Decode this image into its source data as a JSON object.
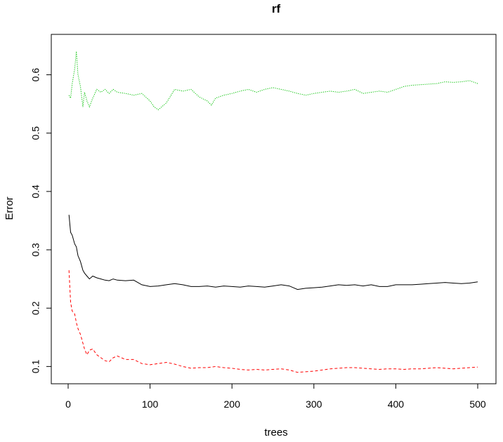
{
  "chart_data": {
    "type": "line",
    "title": "rf",
    "xlabel": "trees",
    "ylabel": "Error",
    "xlim": [
      0,
      500
    ],
    "ylim": [
      0.08,
      0.65
    ],
    "xticks": [
      0,
      100,
      200,
      300,
      400,
      500
    ],
    "yticks": [
      0.1,
      0.2,
      0.3,
      0.4,
      0.5,
      0.6
    ],
    "grid": false,
    "legend": "none",
    "series": [
      {
        "color": "#000000",
        "dash": "solid",
        "points": [
          [
            1,
            0.36
          ],
          [
            3,
            0.33
          ],
          [
            5,
            0.325
          ],
          [
            8,
            0.31
          ],
          [
            10,
            0.305
          ],
          [
            12,
            0.29
          ],
          [
            15,
            0.28
          ],
          [
            18,
            0.265
          ],
          [
            20,
            0.26
          ],
          [
            23,
            0.255
          ],
          [
            26,
            0.25
          ],
          [
            30,
            0.255
          ],
          [
            35,
            0.252
          ],
          [
            40,
            0.25
          ],
          [
            45,
            0.248
          ],
          [
            50,
            0.247
          ],
          [
            55,
            0.25
          ],
          [
            60,
            0.248
          ],
          [
            70,
            0.247
          ],
          [
            80,
            0.248
          ],
          [
            90,
            0.24
          ],
          [
            100,
            0.237
          ],
          [
            110,
            0.238
          ],
          [
            120,
            0.24
          ],
          [
            130,
            0.242
          ],
          [
            140,
            0.24
          ],
          [
            150,
            0.237
          ],
          [
            160,
            0.237
          ],
          [
            170,
            0.238
          ],
          [
            180,
            0.236
          ],
          [
            190,
            0.238
          ],
          [
            200,
            0.237
          ],
          [
            210,
            0.236
          ],
          [
            220,
            0.238
          ],
          [
            230,
            0.237
          ],
          [
            240,
            0.236
          ],
          [
            250,
            0.238
          ],
          [
            260,
            0.24
          ],
          [
            270,
            0.238
          ],
          [
            280,
            0.232
          ],
          [
            290,
            0.234
          ],
          [
            300,
            0.235
          ],
          [
            310,
            0.236
          ],
          [
            320,
            0.238
          ],
          [
            330,
            0.24
          ],
          [
            340,
            0.239
          ],
          [
            350,
            0.24
          ],
          [
            360,
            0.238
          ],
          [
            370,
            0.24
          ],
          [
            380,
            0.237
          ],
          [
            390,
            0.237
          ],
          [
            400,
            0.24
          ],
          [
            410,
            0.24
          ],
          [
            420,
            0.24
          ],
          [
            430,
            0.241
          ],
          [
            440,
            0.242
          ],
          [
            450,
            0.243
          ],
          [
            460,
            0.244
          ],
          [
            470,
            0.243
          ],
          [
            480,
            0.242
          ],
          [
            490,
            0.243
          ],
          [
            500,
            0.245
          ]
        ]
      },
      {
        "color": "#ff0000",
        "dash": "dashed",
        "points": [
          [
            1,
            0.265
          ],
          [
            3,
            0.21
          ],
          [
            5,
            0.195
          ],
          [
            8,
            0.19
          ],
          [
            10,
            0.175
          ],
          [
            12,
            0.165
          ],
          [
            15,
            0.155
          ],
          [
            18,
            0.14
          ],
          [
            20,
            0.13
          ],
          [
            23,
            0.12
          ],
          [
            26,
            0.128
          ],
          [
            30,
            0.13
          ],
          [
            35,
            0.12
          ],
          [
            40,
            0.115
          ],
          [
            45,
            0.11
          ],
          [
            50,
            0.108
          ],
          [
            55,
            0.115
          ],
          [
            60,
            0.118
          ],
          [
            70,
            0.112
          ],
          [
            80,
            0.112
          ],
          [
            90,
            0.105
          ],
          [
            100,
            0.103
          ],
          [
            110,
            0.105
          ],
          [
            120,
            0.107
          ],
          [
            130,
            0.104
          ],
          [
            140,
            0.1
          ],
          [
            150,
            0.097
          ],
          [
            160,
            0.098
          ],
          [
            170,
            0.098
          ],
          [
            180,
            0.1
          ],
          [
            190,
            0.098
          ],
          [
            200,
            0.097
          ],
          [
            210,
            0.095
          ],
          [
            220,
            0.094
          ],
          [
            230,
            0.095
          ],
          [
            240,
            0.094
          ],
          [
            250,
            0.095
          ],
          [
            260,
            0.096
          ],
          [
            270,
            0.094
          ],
          [
            280,
            0.09
          ],
          [
            290,
            0.091
          ],
          [
            300,
            0.092
          ],
          [
            310,
            0.094
          ],
          [
            320,
            0.096
          ],
          [
            330,
            0.097
          ],
          [
            340,
            0.098
          ],
          [
            350,
            0.098
          ],
          [
            360,
            0.097
          ],
          [
            370,
            0.096
          ],
          [
            380,
            0.095
          ],
          [
            390,
            0.096
          ],
          [
            400,
            0.096
          ],
          [
            410,
            0.095
          ],
          [
            420,
            0.096
          ],
          [
            430,
            0.096
          ],
          [
            440,
            0.097
          ],
          [
            450,
            0.098
          ],
          [
            460,
            0.097
          ],
          [
            470,
            0.096
          ],
          [
            480,
            0.097
          ],
          [
            490,
            0.098
          ],
          [
            500,
            0.099
          ]
        ]
      },
      {
        "color": "#00c000",
        "dash": "dotted",
        "points": [
          [
            1,
            0.565
          ],
          [
            3,
            0.56
          ],
          [
            5,
            0.585
          ],
          [
            8,
            0.61
          ],
          [
            10,
            0.64
          ],
          [
            12,
            0.6
          ],
          [
            15,
            0.58
          ],
          [
            18,
            0.545
          ],
          [
            20,
            0.57
          ],
          [
            23,
            0.555
          ],
          [
            26,
            0.545
          ],
          [
            30,
            0.56
          ],
          [
            35,
            0.575
          ],
          [
            40,
            0.57
          ],
          [
            45,
            0.575
          ],
          [
            50,
            0.568
          ],
          [
            55,
            0.575
          ],
          [
            60,
            0.57
          ],
          [
            70,
            0.568
          ],
          [
            80,
            0.565
          ],
          [
            90,
            0.568
          ],
          [
            100,
            0.555
          ],
          [
            105,
            0.545
          ],
          [
            110,
            0.54
          ],
          [
            120,
            0.552
          ],
          [
            130,
            0.575
          ],
          [
            140,
            0.572
          ],
          [
            150,
            0.575
          ],
          [
            160,
            0.562
          ],
          [
            170,
            0.555
          ],
          [
            175,
            0.548
          ],
          [
            180,
            0.56
          ],
          [
            190,
            0.565
          ],
          [
            200,
            0.568
          ],
          [
            210,
            0.572
          ],
          [
            220,
            0.575
          ],
          [
            230,
            0.57
          ],
          [
            240,
            0.575
          ],
          [
            250,
            0.578
          ],
          [
            260,
            0.575
          ],
          [
            270,
            0.572
          ],
          [
            280,
            0.568
          ],
          [
            290,
            0.565
          ],
          [
            300,
            0.568
          ],
          [
            310,
            0.57
          ],
          [
            320,
            0.572
          ],
          [
            330,
            0.57
          ],
          [
            340,
            0.572
          ],
          [
            350,
            0.575
          ],
          [
            360,
            0.568
          ],
          [
            370,
            0.57
          ],
          [
            380,
            0.572
          ],
          [
            390,
            0.57
          ],
          [
            400,
            0.575
          ],
          [
            410,
            0.58
          ],
          [
            420,
            0.582
          ],
          [
            430,
            0.583
          ],
          [
            440,
            0.584
          ],
          [
            450,
            0.585
          ],
          [
            460,
            0.588
          ],
          [
            470,
            0.587
          ],
          [
            480,
            0.588
          ],
          [
            490,
            0.59
          ],
          [
            500,
            0.585
          ]
        ]
      }
    ]
  }
}
